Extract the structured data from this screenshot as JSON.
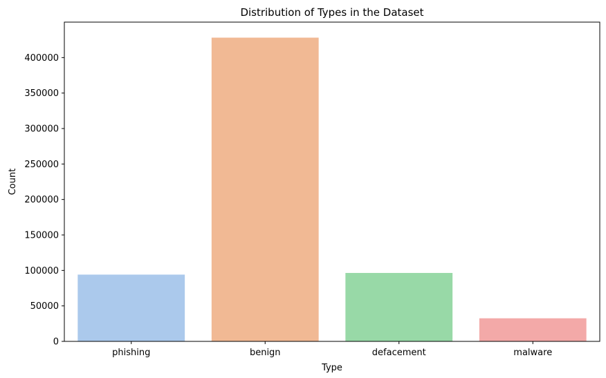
{
  "chart_data": {
    "type": "bar",
    "title": "Distribution of Types in the Dataset",
    "xlabel": "Type",
    "ylabel": "Count",
    "categories": [
      "phishing",
      "benign",
      "defacement",
      "malware"
    ],
    "values": [
      94111,
      428103,
      96457,
      32520
    ],
    "colors": [
      "#abc9ec",
      "#f1b994",
      "#98d9a7",
      "#f3a9a8"
    ],
    "ylim": [
      0,
      450000
    ],
    "yticks": [
      0,
      50000,
      100000,
      150000,
      200000,
      250000,
      300000,
      350000,
      400000
    ],
    "grid": false,
    "legend": "none"
  }
}
